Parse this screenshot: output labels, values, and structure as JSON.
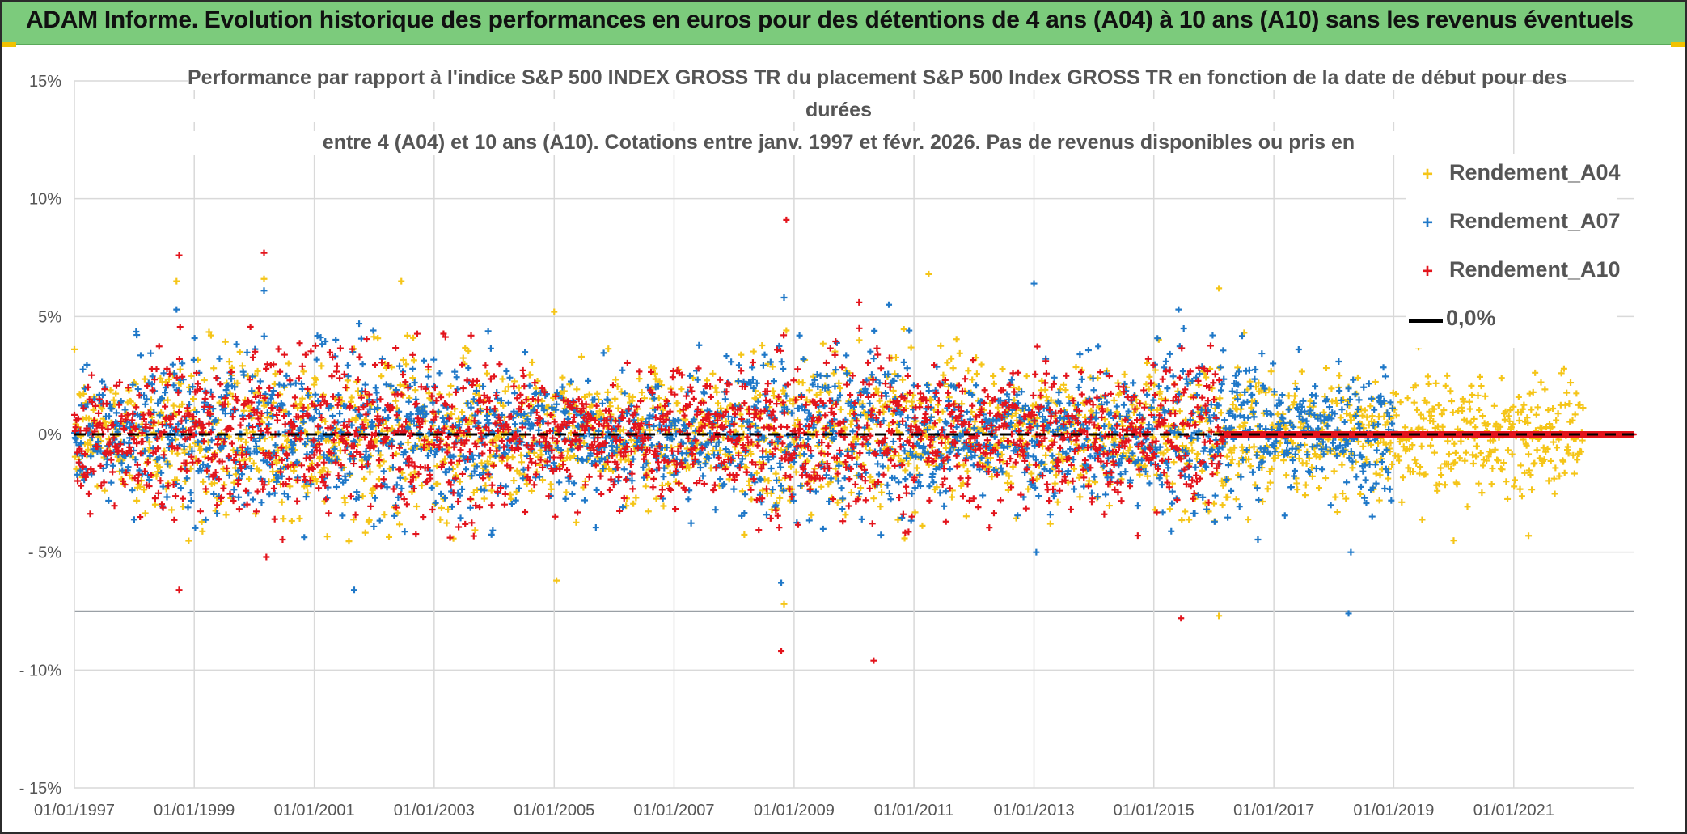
{
  "header": {
    "title": "ADAM Informe. Evolution historique des performances en euros pour des détentions de 4 ans (A04) à 10 ans (A10) sans les revenus éventuels"
  },
  "colors": {
    "banner": "#7ccb7c",
    "accent_corners": "#f2c200",
    "series_A04": "#f5c518",
    "series_A07": "#1f78c8",
    "series_A10": "#e3141c",
    "zero_line": "#000000"
  },
  "chart_data": {
    "type": "scatter",
    "title_lines": [
      "Performance par rapport à l'indice S&P 500 INDEX GROSS TR  du placement S&P 500 Index GROSS TR en fonction de la date de début pour des",
      "durées",
      "entre 4 (A04) et 10 ans (A10). Cotations entre janv. 1997 et févr. 2026. Pas de revenus disponibles ou pris en"
    ],
    "xlabel": "",
    "ylabel": "",
    "x_ticks": [
      "01/01/1997",
      "01/01/1999",
      "01/01/2001",
      "01/01/2003",
      "01/01/2005",
      "01/01/2007",
      "01/01/2009",
      "01/01/2011",
      "01/01/2013",
      "01/01/2015",
      "01/01/2017",
      "01/01/2019",
      "01/01/2021"
    ],
    "xlim": [
      "1997-01-01",
      "2023-01-01"
    ],
    "y_ticks": [
      "15%",
      "10%",
      "5%",
      "0%",
      "- 5%",
      "- 10%",
      "- 15%"
    ],
    "ylim": [
      -15,
      15
    ],
    "grid": true,
    "legend_position": "right",
    "legend": [
      "Rendement_A04",
      "Rendement_A07",
      "Rendement_A10",
      "0,0%"
    ],
    "series": [
      {
        "name": "Rendement_A04",
        "color": "#f5c518",
        "marker": "+",
        "x_range": [
          "1997-01-01",
          "2022-03-01"
        ],
        "typical_spread_pct": 1.3,
        "extremes": [
          {
            "x": "1998-09-15",
            "y": 6.5
          },
          {
            "x": "2000-03-01",
            "y": 6.6
          },
          {
            "x": "2002-06-15",
            "y": 6.5
          },
          {
            "x": "2005-01-01",
            "y": 5.2
          },
          {
            "x": "2005-01-15",
            "y": -6.2
          },
          {
            "x": "2008-11-01",
            "y": -7.2
          },
          {
            "x": "2011-04-01",
            "y": 6.8
          },
          {
            "x": "2016-02-01",
            "y": 6.2
          },
          {
            "x": "2016-02-01",
            "y": -7.7
          },
          {
            "x": "2019-06-01",
            "y": 3.7
          },
          {
            "x": "2020-01-01",
            "y": -4.5
          },
          {
            "x": "2021-04-01",
            "y": -4.3
          }
        ]
      },
      {
        "name": "Rendement_A07",
        "color": "#1f78c8",
        "marker": "+",
        "x_range": [
          "1997-01-01",
          "2019-01-01"
        ],
        "typical_spread_pct": 1.3,
        "extremes": [
          {
            "x": "1998-09-15",
            "y": 5.3
          },
          {
            "x": "2000-03-01",
            "y": 6.1
          },
          {
            "x": "2001-09-01",
            "y": -6.6
          },
          {
            "x": "2001-10-01",
            "y": 4.7
          },
          {
            "x": "2008-11-01",
            "y": 5.8
          },
          {
            "x": "2008-10-15",
            "y": -6.3
          },
          {
            "x": "2010-08-01",
            "y": 5.5
          },
          {
            "x": "2013-01-01",
            "y": 6.4
          },
          {
            "x": "2013-01-15",
            "y": -5.0
          },
          {
            "x": "2015-06-01",
            "y": 5.3
          },
          {
            "x": "2018-04-01",
            "y": -7.6
          },
          {
            "x": "2018-04-15",
            "y": -5.0
          }
        ]
      },
      {
        "name": "Rendement_A10",
        "color": "#e3141c",
        "marker": "+",
        "x_range": [
          "1997-01-01",
          "2016-03-01"
        ],
        "flat_zero_range": [
          "2016-03-01",
          "2023-01-01"
        ],
        "typical_spread_pct": 1.3,
        "extremes": [
          {
            "x": "1998-10-01",
            "y": 7.6
          },
          {
            "x": "1998-10-01",
            "y": -6.6
          },
          {
            "x": "2000-03-01",
            "y": 7.7
          },
          {
            "x": "2000-03-15",
            "y": -5.2
          },
          {
            "x": "2008-11-15",
            "y": 9.1
          },
          {
            "x": "2008-10-15",
            "y": -9.2
          },
          {
            "x": "2010-02-01",
            "y": 5.6
          },
          {
            "x": "2010-05-01",
            "y": -9.6
          },
          {
            "x": "2015-06-15",
            "y": -7.8
          }
        ]
      },
      {
        "name": "0,0%",
        "color": "#000000",
        "type": "line",
        "style": "dashed",
        "x": [
          "1997-01-01",
          "2023-01-01"
        ],
        "y": [
          0,
          0
        ]
      }
    ]
  }
}
